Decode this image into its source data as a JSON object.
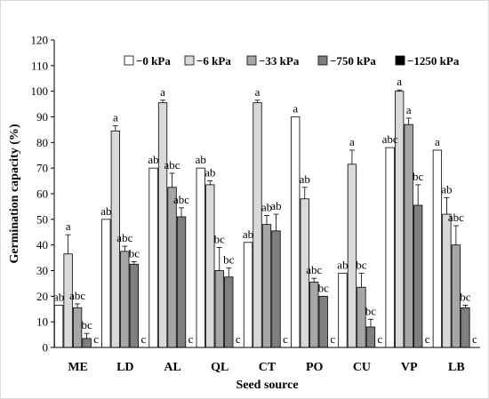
{
  "chart_data": {
    "type": "bar",
    "xlabel": "Seed source",
    "ylabel": "Germination capacity (%)",
    "ylim": [
      0,
      120
    ],
    "yticks": [
      0,
      10,
      20,
      30,
      40,
      50,
      60,
      70,
      80,
      90,
      100,
      110,
      120
    ],
    "grid": false,
    "legend_position": "top-right",
    "categories": [
      "ME",
      "LD",
      "AL",
      "QL",
      "CT",
      "PO",
      "CU",
      "VP",
      "LB"
    ],
    "series": [
      {
        "name": "−0 kPa",
        "color": "#ffffff",
        "values": [
          16.5,
          50,
          70,
          70,
          41,
          90,
          29,
          78,
          77
        ],
        "errors": [
          0,
          0,
          0,
          0,
          0,
          0,
          0,
          0,
          0
        ],
        "labels": [
          "ab",
          "ab",
          "ab",
          "ab",
          "ab",
          "a",
          "ab",
          "abc",
          "a"
        ]
      },
      {
        "name": "−6 kPa",
        "color": "#d9d9d9",
        "values": [
          36.5,
          84.5,
          95.5,
          63.5,
          95.5,
          58,
          71.5,
          100,
          52
        ],
        "errors": [
          7.5,
          2,
          1,
          1.5,
          1,
          4.5,
          5.5,
          0.5,
          6.5
        ],
        "labels": [
          "a",
          "a",
          "a",
          "ab",
          "a",
          "ab",
          "a",
          "a",
          "ab"
        ]
      },
      {
        "name": "−33 kPa",
        "color": "#a6a6a6",
        "values": [
          15.5,
          37.5,
          62.5,
          30,
          48,
          25.5,
          23.5,
          87,
          40
        ],
        "errors": [
          1.5,
          2,
          5.5,
          9,
          3.5,
          1.5,
          5.5,
          2.5,
          7.5
        ],
        "labels": [
          "abc",
          "abc",
          "abc",
          "bc",
          "ab",
          "abc",
          "bc",
          "a",
          "abc"
        ]
      },
      {
        "name": "−750 kPa",
        "color": "#7f7f7f",
        "values": [
          3.5,
          32.5,
          51,
          27.5,
          45.5,
          20,
          8,
          55.5,
          15.5
        ],
        "errors": [
          2,
          1,
          3.5,
          3.5,
          6.5,
          0,
          3,
          8,
          1
        ],
        "labels": [
          "bc",
          "bc",
          "abc",
          "bc",
          "ab",
          "bc",
          "bc",
          "bc",
          "bc"
        ]
      },
      {
        "name": "−1250 kPa",
        "color": "#000000",
        "values": [
          0,
          0,
          0,
          0,
          0,
          0,
          0,
          0,
          0
        ],
        "errors": [
          0,
          0,
          0,
          0,
          0,
          0,
          0,
          0,
          0
        ],
        "labels": [
          "c",
          "c",
          "c",
          "c",
          "c",
          "c",
          "c",
          "c",
          "c"
        ]
      }
    ]
  }
}
